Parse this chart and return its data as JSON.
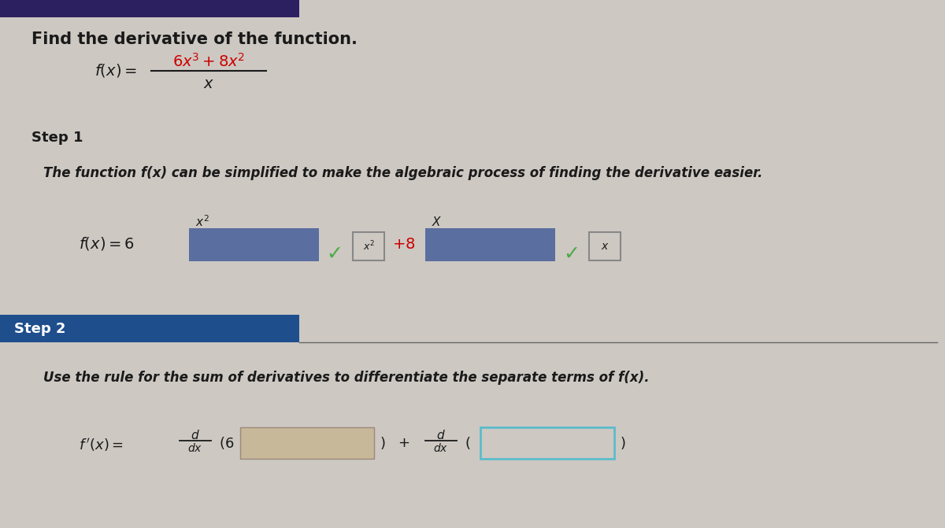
{
  "bg_color": "#cdc8c2",
  "top_bar_color": "#2d2060",
  "step2_bar_color": "#1f4e8c",
  "input_box_blue": "#5a6fa0",
  "input_box_small_outline": "#888888",
  "input_box_blue2": "#5b8fa8",
  "check_color": "#4aaa44",
  "text_color": "#1a1a1a",
  "red_color": "#cc0000",
  "white": "#ffffff",
  "title_text": "Find the derivative of the function.",
  "step1_label": "Step 1",
  "step1_desc": "The function f(x) can be simplified to make the algebraic process of finding the derivative easier.",
  "step2_label": "Step 2",
  "step2_desc": "Use the rule for the sum of derivatives to differentiate the separate terms of f(x).",
  "tan_box": "#c8b89a",
  "blue_outline": "#5bbccc"
}
